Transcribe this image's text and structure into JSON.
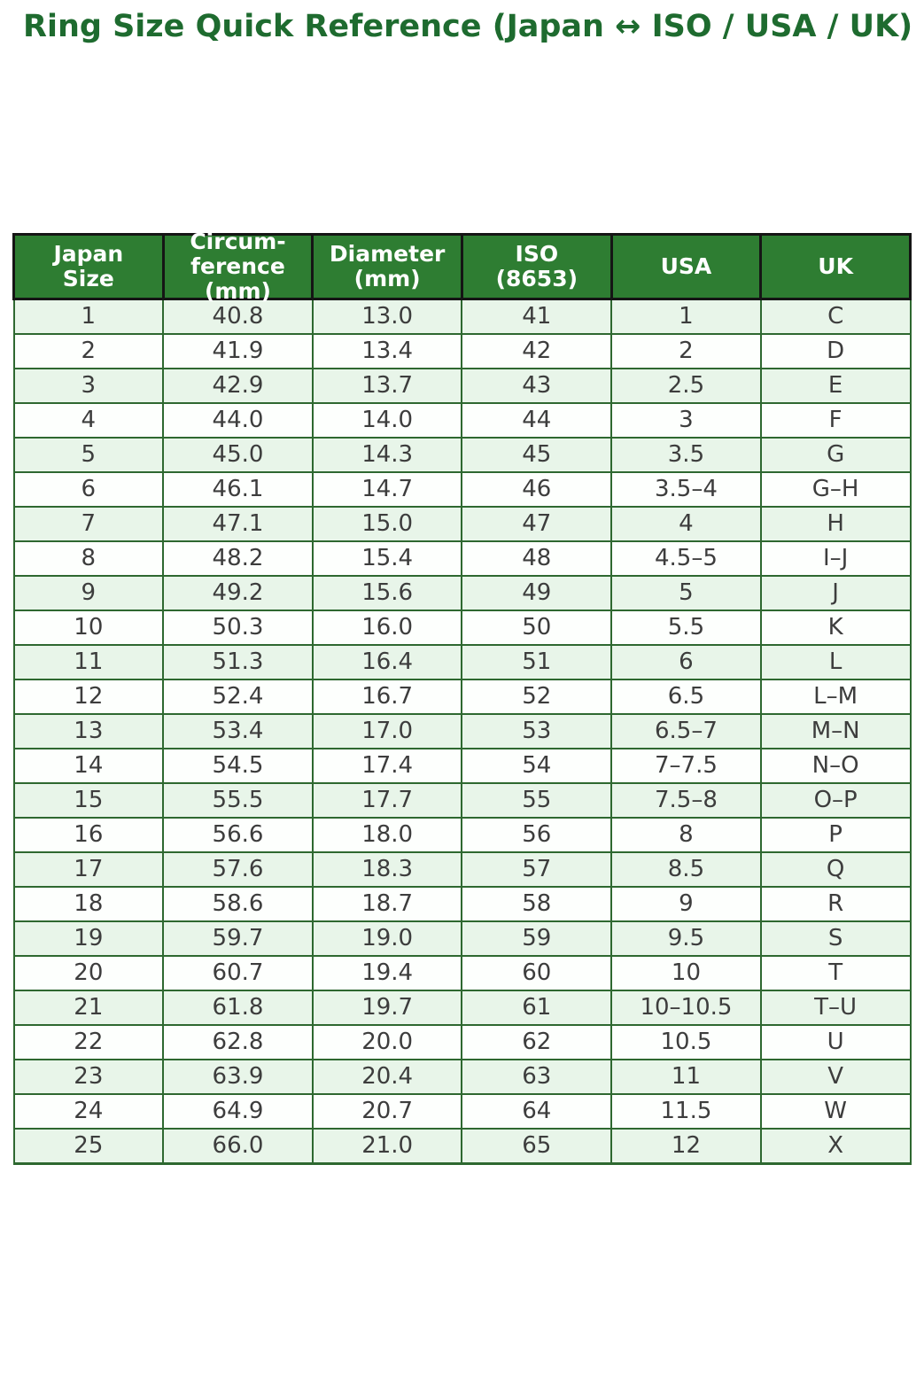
{
  "title": "Ring Size Quick Reference (Japan ↔ ISO / USA / UK)",
  "colors": {
    "title_text": "#1e6b2f",
    "header_bg": "#2e7d32",
    "header_text": "#ffffff",
    "header_border": "#151515",
    "body_border": "#2e6830",
    "row_stripe_bg": "#e8f5e9",
    "row_plain_bg": "#fdfffd",
    "body_text": "#3d3d3d"
  },
  "chart_data": {
    "type": "table",
    "title": "Ring Size Quick Reference (Japan ↔ ISO / USA / UK)",
    "columns": [
      "Japan\nSize",
      "Circum-\nference\n(mm)",
      "Diameter\n(mm)",
      "ISO\n(8653)",
      "USA",
      "UK"
    ],
    "rows": [
      [
        "1",
        "40.8",
        "13.0",
        "41",
        "1",
        "C"
      ],
      [
        "2",
        "41.9",
        "13.4",
        "42",
        "2",
        "D"
      ],
      [
        "3",
        "42.9",
        "13.7",
        "43",
        "2.5",
        "E"
      ],
      [
        "4",
        "44.0",
        "14.0",
        "44",
        "3",
        "F"
      ],
      [
        "5",
        "45.0",
        "14.3",
        "45",
        "3.5",
        "G"
      ],
      [
        "6",
        "46.1",
        "14.7",
        "46",
        "3.5–4",
        "G–H"
      ],
      [
        "7",
        "47.1",
        "15.0",
        "47",
        "4",
        "H"
      ],
      [
        "8",
        "48.2",
        "15.4",
        "48",
        "4.5–5",
        "I–J"
      ],
      [
        "9",
        "49.2",
        "15.6",
        "49",
        "5",
        "J"
      ],
      [
        "10",
        "50.3",
        "16.0",
        "50",
        "5.5",
        "K"
      ],
      [
        "11",
        "51.3",
        "16.4",
        "51",
        "6",
        "L"
      ],
      [
        "12",
        "52.4",
        "16.7",
        "52",
        "6.5",
        "L–M"
      ],
      [
        "13",
        "53.4",
        "17.0",
        "53",
        "6.5–7",
        "M–N"
      ],
      [
        "14",
        "54.5",
        "17.4",
        "54",
        "7–7.5",
        "N–O"
      ],
      [
        "15",
        "55.5",
        "17.7",
        "55",
        "7.5–8",
        "O–P"
      ],
      [
        "16",
        "56.6",
        "18.0",
        "56",
        "8",
        "P"
      ],
      [
        "17",
        "57.6",
        "18.3",
        "57",
        "8.5",
        "Q"
      ],
      [
        "18",
        "58.6",
        "18.7",
        "58",
        "9",
        "R"
      ],
      [
        "19",
        "59.7",
        "19.0",
        "59",
        "9.5",
        "S"
      ],
      [
        "20",
        "60.7",
        "19.4",
        "60",
        "10",
        "T"
      ],
      [
        "21",
        "61.8",
        "19.7",
        "61",
        "10–10.5",
        "T–U"
      ],
      [
        "22",
        "62.8",
        "20.0",
        "62",
        "10.5",
        "U"
      ],
      [
        "23",
        "63.9",
        "20.4",
        "63",
        "11",
        "V"
      ],
      [
        "24",
        "64.9",
        "20.7",
        "64",
        "11.5",
        "W"
      ],
      [
        "25",
        "66.0",
        "21.0",
        "65",
        "12",
        "X"
      ]
    ]
  }
}
